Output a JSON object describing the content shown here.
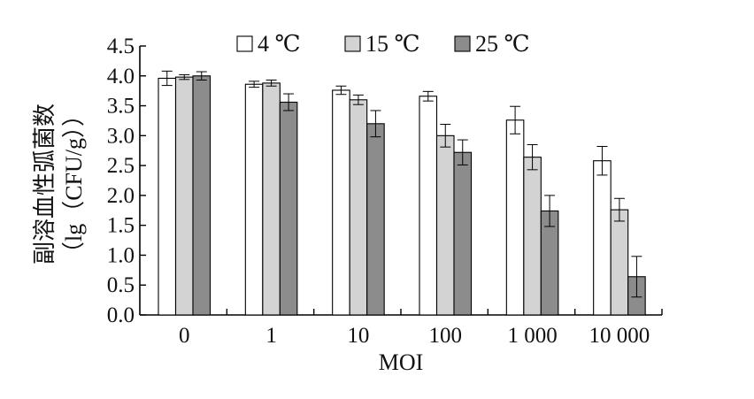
{
  "chart_data": {
    "type": "bar",
    "title": "",
    "xlabel": "MOI",
    "ylabel_line1": "副溶血性弧菌数",
    "ylabel_line2": "（lg（CFU/g））",
    "categories": [
      "0",
      "1",
      "10",
      "100",
      "1 000",
      "10 000"
    ],
    "ylim": [
      0.0,
      4.5
    ],
    "yticks": [
      "0.0",
      "0.5",
      "1.0",
      "1.5",
      "2.0",
      "2.5",
      "3.0",
      "3.5",
      "4.0",
      "4.5"
    ],
    "legend_position": "top",
    "grid": false,
    "series": [
      {
        "name": "4 ℃",
        "color": "#ffffff",
        "values": [
          3.96,
          3.86,
          3.76,
          3.66,
          3.26,
          2.58
        ],
        "errors": [
          0.12,
          0.05,
          0.07,
          0.08,
          0.23,
          0.24
        ]
      },
      {
        "name": "15 ℃",
        "color": "#d3d3d3",
        "values": [
          3.98,
          3.88,
          3.6,
          3.0,
          2.64,
          1.76
        ],
        "errors": [
          0.04,
          0.05,
          0.08,
          0.19,
          0.21,
          0.19
        ]
      },
      {
        "name": "25 ℃",
        "color": "#8c8c8c",
        "values": [
          4.0,
          3.56,
          3.2,
          2.72,
          1.74,
          0.64
        ],
        "errors": [
          0.07,
          0.14,
          0.22,
          0.21,
          0.26,
          0.34
        ]
      }
    ]
  }
}
